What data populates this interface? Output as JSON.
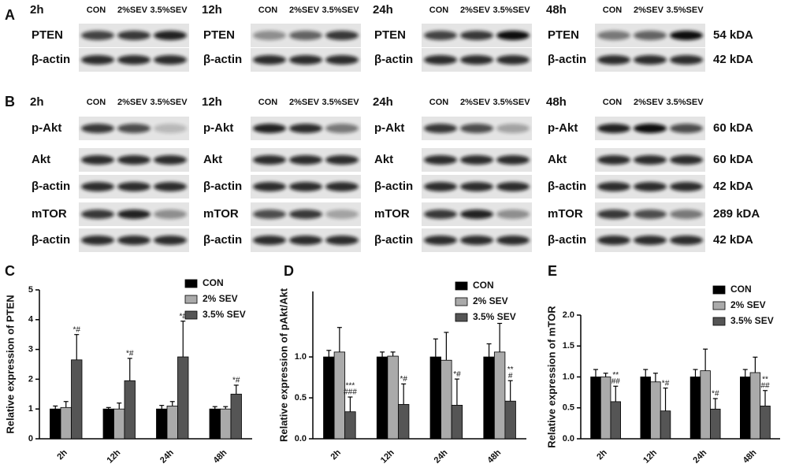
{
  "panel_a": {
    "label": "A",
    "groups": [
      {
        "time": "2h",
        "lanes": [
          "CON",
          "2%SEV",
          "3.5%SEV"
        ],
        "rows": [
          "PTEN",
          "β-actin"
        ]
      },
      {
        "time": "12h",
        "lanes": [
          "CON",
          "2%SEV",
          "3.5%SEV"
        ],
        "rows": [
          "PTEN",
          "β-actin"
        ]
      },
      {
        "time": "24h",
        "lanes": [
          "CON",
          "2%SEV",
          "3.5%SEV"
        ],
        "rows": [
          "PTEN",
          "β-actin"
        ]
      },
      {
        "time": "48h",
        "lanes": [
          "CON",
          "2%SEV",
          "3.5%SEV"
        ],
        "rows": [
          "PTEN",
          "β-actin"
        ]
      }
    ],
    "kda": [
      "54 kDA",
      "42 kDA"
    ]
  },
  "panel_b": {
    "label": "B",
    "groups": [
      {
        "time": "2h",
        "lanes": [
          "CON",
          "2%SEV",
          "3.5%SEV"
        ],
        "rows": [
          "p-Akt",
          "Akt",
          "β-actin",
          "mTOR",
          "β-actin"
        ]
      },
      {
        "time": "12h",
        "lanes": [
          "CON",
          "2%SEV",
          "3.5%SEV"
        ],
        "rows": [
          "p-Akt",
          "Akt",
          "β-actin",
          "mTOR",
          "β-actin"
        ]
      },
      {
        "time": "24h",
        "lanes": [
          "CON",
          "2%SEV",
          "3.5%SEV"
        ],
        "rows": [
          "p-Akt",
          "Akt",
          "β-actin",
          "mTOR",
          "β-actin"
        ]
      },
      {
        "time": "48h",
        "lanes": [
          "CON",
          "2%SEV",
          "3.5%SEV"
        ],
        "rows": [
          "p-Akt",
          "Akt",
          "β-actin",
          "mTOR",
          "β-actin"
        ]
      }
    ],
    "kda": [
      "60 kDA",
      "60 kDA",
      "42 kDA",
      "289 kDA",
      "42 kDA"
    ]
  },
  "chart_data": [
    {
      "panel": "C",
      "type": "bar",
      "ylabel": "Relative expression of PTEN",
      "categories": [
        "2h",
        "12h",
        "24h",
        "48h"
      ],
      "series": [
        {
          "name": "CON",
          "color": "#000000",
          "values": [
            1.0,
            1.0,
            1.0,
            1.0
          ],
          "errors": [
            0.1,
            0.05,
            0.12,
            0.08
          ]
        },
        {
          "name": "2% SEV",
          "color": "#aaaaaa",
          "values": [
            1.05,
            1.0,
            1.1,
            1.0
          ],
          "errors": [
            0.2,
            0.2,
            0.15,
            0.08
          ]
        },
        {
          "name": "3.5% SEV",
          "color": "#555555",
          "values": [
            2.65,
            1.95,
            2.75,
            1.5
          ],
          "errors": [
            0.85,
            0.75,
            1.2,
            0.3
          ],
          "annotations": [
            [
              "*#"
            ],
            [
              "*#"
            ],
            [
              "*#"
            ],
            [
              "*#"
            ]
          ]
        }
      ],
      "ylim": [
        0,
        5
      ],
      "yticks": [
        0,
        1,
        2,
        3,
        4,
        5
      ],
      "legend": "upper right"
    },
    {
      "panel": "D",
      "type": "bar",
      "ylabel": "Relative expression of pAkt/Akt",
      "categories": [
        "2h",
        "12h",
        "24h",
        "48h"
      ],
      "series": [
        {
          "name": "CON",
          "color": "#000000",
          "values": [
            1.0,
            1.0,
            1.0,
            1.0
          ],
          "errors": [
            0.08,
            0.06,
            0.22,
            0.16
          ]
        },
        {
          "name": "2% SEV",
          "color": "#aaaaaa",
          "values": [
            1.06,
            1.01,
            0.96,
            1.06
          ],
          "errors": [
            0.3,
            0.05,
            0.34,
            0.35
          ]
        },
        {
          "name": "3.5% SEV",
          "color": "#555555",
          "values": [
            0.33,
            0.42,
            0.41,
            0.46
          ],
          "errors": [
            0.18,
            0.25,
            0.32,
            0.25
          ],
          "annotations": [
            [
              "***",
              "###"
            ],
            [
              "*#"
            ],
            [
              "*#"
            ],
            [
              "**",
              "#"
            ]
          ]
        }
      ],
      "ylim": [
        0,
        1.8
      ],
      "yticks": [
        {
          "value": 0,
          "label": "0.0"
        },
        0.5,
        {
          "value": 1,
          "label": "1.0"
        }
      ],
      "legend": "upper right"
    },
    {
      "panel": "E",
      "type": "bar",
      "ylabel": "Relative expression of mTOR",
      "categories": [
        "2h",
        "12h",
        "24h",
        "48h"
      ],
      "series": [
        {
          "name": "CON",
          "color": "#000000",
          "values": [
            1.0,
            1.0,
            1.0,
            1.0
          ],
          "errors": [
            0.12,
            0.12,
            0.12,
            0.12
          ]
        },
        {
          "name": "2% SEV",
          "color": "#aaaaaa",
          "values": [
            1.0,
            0.92,
            1.1,
            1.07
          ],
          "errors": [
            0.06,
            0.14,
            0.35,
            0.25
          ]
        },
        {
          "name": "3.5% SEV",
          "color": "#555555",
          "values": [
            0.6,
            0.45,
            0.48,
            0.53
          ],
          "errors": [
            0.25,
            0.37,
            0.17,
            0.25
          ],
          "annotations": [
            [
              "**",
              "##"
            ],
            [
              "*#"
            ],
            [
              "*#"
            ],
            [
              "**",
              "##"
            ]
          ]
        }
      ],
      "ylim": [
        0,
        2.0
      ],
      "yticks": [
        {
          "value": 0,
          "label": "0.0"
        },
        0.5,
        {
          "value": 1,
          "label": "1.0"
        },
        1.5,
        {
          "value": 2,
          "label": "2.0"
        }
      ],
      "legend": "upper right"
    }
  ]
}
